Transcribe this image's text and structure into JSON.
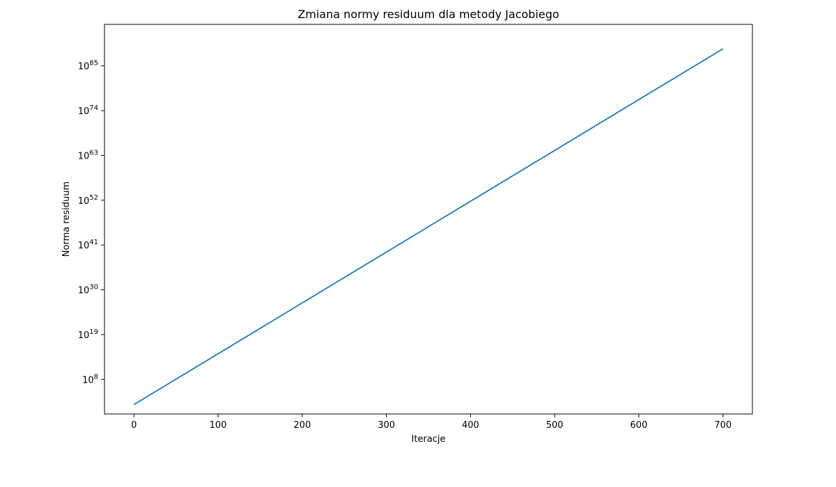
{
  "chart_data": {
    "type": "line",
    "title": "Zmiana normy residuum dla metody Jacobiego",
    "xlabel": "Iteracje",
    "ylabel": "Norma residuum",
    "x_scale": "linear",
    "y_scale": "log",
    "xlim": [
      -35,
      735
    ],
    "ylim_log10": [
      -0.5,
      95.2
    ],
    "xticks": [
      0,
      100,
      200,
      300,
      400,
      500,
      600,
      700
    ],
    "yticks_exponents": [
      8,
      19,
      30,
      41,
      52,
      63,
      74,
      85
    ],
    "tick_base": "10",
    "grid": false,
    "legend": "none",
    "series": [
      {
        "color": "#1f77b4",
        "x": [
          0,
          700
        ],
        "log10_y": [
          1.8,
          89.2
        ]
      }
    ]
  }
}
